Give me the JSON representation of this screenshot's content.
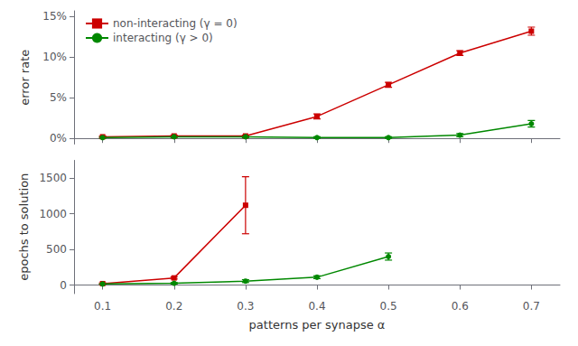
{
  "chart_data": [
    {
      "type": "line",
      "x": [
        0.1,
        0.2,
        0.3,
        0.4,
        0.5,
        0.6,
        0.7
      ],
      "series": [
        {
          "name": "non-interacting (γ = 0)",
          "color": "#cc0000",
          "marker": "square",
          "values": [
            0.002,
            0.003,
            0.003,
            0.027,
            0.066,
            0.105,
            0.132
          ],
          "errors": [
            0.001,
            0.001,
            0.001,
            0.003,
            0.003,
            0.003,
            0.005
          ]
        },
        {
          "name": "interacting (γ > 0)",
          "color": "#008800",
          "marker": "circle",
          "values": [
            0.001,
            0.002,
            0.002,
            0.001,
            0.001,
            0.004,
            0.018
          ],
          "errors": [
            0.001,
            0.001,
            0.001,
            0.001,
            0.001,
            0.002,
            0.004
          ]
        }
      ],
      "ylabel": "error rate",
      "xlim": [
        0.06,
        0.74
      ],
      "ylim": [
        -0.007,
        0.157
      ],
      "xticks": [
        0.1,
        0.2,
        0.3,
        0.4,
        0.5,
        0.6,
        0.7
      ],
      "yticks": [
        {
          "value": 0.0,
          "label": "0%"
        },
        {
          "value": 0.05,
          "label": "5%"
        },
        {
          "value": 0.1,
          "label": "10%"
        },
        {
          "value": 0.15,
          "label": "15%"
        }
      ],
      "legend": "upper left",
      "grid": false,
      "tick_labels": "y"
    },
    {
      "type": "line",
      "x": [
        0.1,
        0.2,
        0.3,
        0.4,
        0.5,
        0.6,
        0.7
      ],
      "series": [
        {
          "color": "#cc0000",
          "marker": "square",
          "values": [
            20,
            100,
            1120,
            null,
            null,
            null,
            null
          ],
          "errors": [
            10,
            15,
            400,
            null,
            null,
            null,
            null
          ]
        },
        {
          "color": "#008800",
          "marker": "circle",
          "values": [
            15,
            25,
            55,
            110,
            400,
            null,
            null
          ],
          "errors": [
            5,
            10,
            20,
            20,
            50,
            null,
            null
          ]
        }
      ],
      "xlabel": "patterns per synapse α",
      "ylabel": "epochs to solution",
      "xlim": [
        0.06,
        0.74
      ],
      "ylim": [
        -120,
        1750
      ],
      "xticks": [
        0.1,
        0.2,
        0.3,
        0.4,
        0.5,
        0.6,
        0.7
      ],
      "yticks": [
        0,
        500,
        1000,
        1500
      ],
      "grid": false
    }
  ]
}
